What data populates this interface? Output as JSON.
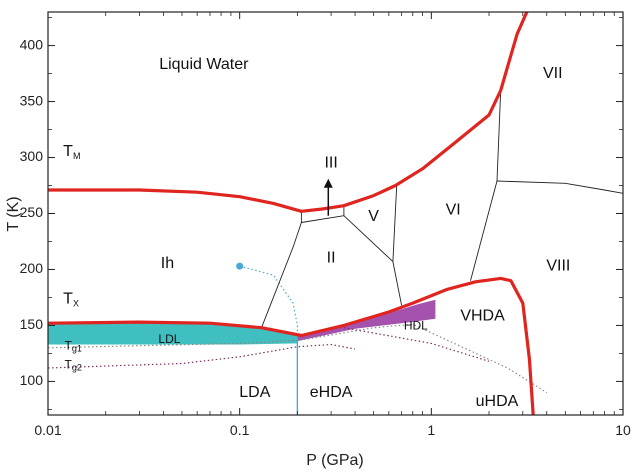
{
  "chart_data": {
    "type": "phase-diagram",
    "xlabel": "P (GPa)",
    "ylabel": "T (K)",
    "x_scale": "log",
    "xlim": [
      0.01,
      10
    ],
    "ylim": [
      70,
      430
    ],
    "x_ticks": [
      0.01,
      0.1,
      1,
      10
    ],
    "x_tick_labels": [
      "0.01",
      "0.1",
      "1",
      "10"
    ],
    "y_ticks": [
      100,
      150,
      200,
      250,
      300,
      350,
      400
    ],
    "y_tick_labels": [
      "100",
      "150",
      "200",
      "250",
      "300",
      "350",
      "400"
    ],
    "colors": {
      "melting_line": "#e0241f",
      "ldl_band": "#3fbfbf",
      "hdl_band": "#9b3fa6",
      "boundary": "#222222",
      "dotted_blue": "#4aa8d8",
      "dotted_purple": "#7a3060",
      "dotted_gray": "#888888"
    },
    "regions": [
      {
        "id": "liquid-water",
        "text": "Liquid Water",
        "P": 0.065,
        "T": 383
      },
      {
        "id": "ice-vii",
        "text": "VII",
        "P": 4.3,
        "T": 375
      },
      {
        "id": "ice-iii",
        "text": "III",
        "P": 0.3,
        "T": 295
      },
      {
        "id": "ice-v",
        "text": "V",
        "P": 0.5,
        "T": 247
      },
      {
        "id": "ice-vi",
        "text": "VI",
        "P": 1.3,
        "T": 253
      },
      {
        "id": "ice-ii",
        "text": "II",
        "P": 0.3,
        "T": 210
      },
      {
        "id": "ice-ih",
        "text": "Ih",
        "P": 0.042,
        "T": 205
      },
      {
        "id": "ice-viii",
        "text": "VIII",
        "P": 4.6,
        "T": 203
      },
      {
        "id": "vhda",
        "text": "VHDA",
        "P": 1.85,
        "T": 158
      },
      {
        "id": "lda",
        "text": "LDA",
        "P": 0.12,
        "T": 90
      },
      {
        "id": "ehda",
        "text": "eHDA",
        "P": 0.3,
        "T": 90
      },
      {
        "id": "uhda",
        "text": "uHDA",
        "P": 2.2,
        "T": 82
      }
    ],
    "small_labels": [
      {
        "id": "ldl",
        "text": "LDL",
        "P": 0.043,
        "T": 137
      },
      {
        "id": "hdl",
        "text": "HDL",
        "P": 0.83,
        "T": 149
      }
    ],
    "temperature_labels": [
      {
        "id": "tm",
        "main": "T",
        "sub": "M",
        "P": 0.012,
        "T": 305
      },
      {
        "id": "tx",
        "main": "T",
        "sub": "X",
        "P": 0.012,
        "T": 173
      },
      {
        "id": "tg1",
        "main": "T",
        "sub": "g1",
        "P": 0.0122,
        "T": 131
      },
      {
        "id": "tg2",
        "main": "T",
        "sub": "g2",
        "P": 0.0122,
        "T": 114
      }
    ],
    "melting_line": {
      "segments": [
        {
          "name": "Ih-liquid",
          "points": [
            [
              0.01,
              271
            ],
            [
              0.03,
              271
            ],
            [
              0.06,
              269
            ],
            [
              0.1,
              265
            ],
            [
              0.15,
              259
            ],
            [
              0.21,
              252
            ]
          ]
        },
        {
          "name": "III-V-VI-VII-liquid",
          "points": [
            [
              0.21,
              252
            ],
            [
              0.27,
              254
            ],
            [
              0.35,
              257
            ],
            [
              0.5,
              266
            ],
            [
              0.65,
              275
            ],
            [
              0.9,
              290
            ],
            [
              1.3,
              312
            ],
            [
              2.0,
              338
            ],
            [
              2.3,
              360
            ],
            [
              2.8,
              410
            ],
            [
              3.15,
              430
            ]
          ]
        },
        {
          "name": "LDL-upper",
          "points": [
            [
              0.01,
              152
            ],
            [
              0.03,
              153
            ],
            [
              0.07,
              152
            ],
            [
              0.13,
              148
            ],
            [
              0.21,
              141
            ]
          ]
        },
        {
          "name": "HDL-VHDA-upper",
          "points": [
            [
              0.21,
              141
            ],
            [
              0.35,
              150
            ],
            [
              0.6,
              162
            ],
            [
              0.8,
              170
            ],
            [
              1.2,
              182
            ],
            [
              1.7,
              189
            ],
            [
              2.3,
              192
            ],
            [
              2.6,
              190
            ],
            [
              3.0,
              170
            ],
            [
              3.25,
              120
            ],
            [
              3.4,
              70
            ]
          ]
        }
      ]
    },
    "phase_boundaries": [
      {
        "name": "Ih-II",
        "points": [
          [
            0.13,
            148
          ],
          [
            0.19,
            220
          ],
          [
            0.21,
            242
          ]
        ]
      },
      {
        "name": "II-III",
        "points": [
          [
            0.21,
            242
          ],
          [
            0.21,
            252
          ]
        ]
      },
      {
        "name": "II-III-top",
        "points": [
          [
            0.21,
            242
          ],
          [
            0.35,
            248
          ]
        ]
      },
      {
        "name": "III-V",
        "points": [
          [
            0.35,
            248
          ],
          [
            0.35,
            257
          ]
        ]
      },
      {
        "name": "II-V",
        "points": [
          [
            0.35,
            248
          ],
          [
            0.63,
            207
          ]
        ]
      },
      {
        "name": "V-VI",
        "points": [
          [
            0.66,
            275
          ],
          [
            0.63,
            207
          ]
        ]
      },
      {
        "name": "II-VI",
        "points": [
          [
            0.63,
            207
          ],
          [
            0.7,
            168
          ]
        ]
      },
      {
        "name": "VI-VII",
        "points": [
          [
            2.3,
            360
          ],
          [
            2.2,
            279
          ]
        ]
      },
      {
        "name": "VI-VIII",
        "points": [
          [
            2.2,
            279
          ],
          [
            1.6,
            190
          ]
        ]
      },
      {
        "name": "VII-VIII",
        "points": [
          [
            2.2,
            279
          ],
          [
            5.0,
            277
          ],
          [
            8.0,
            271
          ],
          [
            10.0,
            268
          ]
        ]
      }
    ],
    "dotted_lines": [
      {
        "name": "Tx-blue",
        "color": "dotted_blue",
        "points": [
          [
            0.1,
            203
          ],
          [
            0.15,
            195
          ],
          [
            0.19,
            170
          ],
          [
            0.2,
            150
          ],
          [
            0.2,
            138
          ]
        ]
      },
      {
        "name": "Tg1-gray",
        "color": "dotted_gray",
        "points": [
          [
            0.01,
            130
          ],
          [
            0.1,
            134
          ],
          [
            0.21,
            137
          ],
          [
            0.5,
            148
          ],
          [
            0.8,
            151
          ],
          [
            2.5,
            112
          ],
          [
            4.0,
            90
          ]
        ]
      },
      {
        "name": "Tg2-purple",
        "color": "dotted_purple",
        "points": [
          [
            0.01,
            112
          ],
          [
            0.05,
            116
          ],
          [
            0.1,
            122
          ],
          [
            0.2,
            131
          ],
          [
            0.3,
            133
          ],
          [
            0.4,
            129
          ]
        ]
      },
      {
        "name": "Tg2-purple-right",
        "color": "dotted_purple",
        "points": [
          [
            0.35,
            148
          ],
          [
            1.0,
            134
          ],
          [
            2.0,
            118
          ]
        ]
      }
    ],
    "vertical_blue": {
      "P": 0.2,
      "T_from": 70,
      "T_to": 138
    },
    "tx_point": {
      "P": 0.1,
      "T": 203
    },
    "arrow": {
      "P": 0.29,
      "T_from": 248,
      "T_to": 277
    },
    "ldl_band": {
      "upper": [
        [
          0.01,
          152
        ],
        [
          0.03,
          153
        ],
        [
          0.07,
          151
        ],
        [
          0.13,
          147
        ],
        [
          0.2,
          141
        ]
      ],
      "lower": [
        [
          0.2,
          134
        ],
        [
          0.1,
          133
        ],
        [
          0.03,
          133
        ],
        [
          0.01,
          133
        ]
      ]
    },
    "hdl_band": {
      "upper": [
        [
          0.2,
          141
        ],
        [
          0.35,
          150
        ],
        [
          0.6,
          161
        ],
        [
          0.85,
          169
        ],
        [
          1.05,
          173
        ]
      ],
      "lower": [
        [
          1.05,
          156
        ],
        [
          0.7,
          152
        ],
        [
          0.4,
          147
        ],
        [
          0.2,
          136
        ]
      ]
    }
  }
}
